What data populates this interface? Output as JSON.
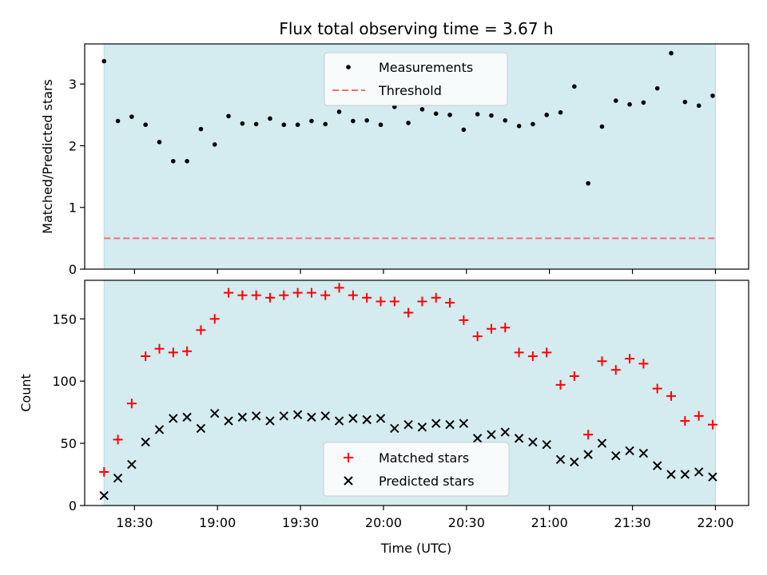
{
  "chart_data": [
    {
      "type": "scatter",
      "title": "Flux total observing time = 3.67 h",
      "ylabel": "Matched/Predicted stars",
      "xlabel": "",
      "ylim": [
        0,
        3.65
      ],
      "yticks": [
        0,
        1,
        2,
        3
      ],
      "x_time_range": [
        "18:12",
        "22:12"
      ],
      "shaded_interval": [
        "18:19",
        "22:00"
      ],
      "legend_position": "top-center",
      "series": [
        {
          "name": "Measurements",
          "color": "#000000",
          "marker": "dot",
          "x": [
            "18:19",
            "18:24",
            "18:29",
            "18:34",
            "18:39",
            "18:44",
            "18:49",
            "18:54",
            "18:59",
            "19:04",
            "19:09",
            "19:14",
            "19:19",
            "19:24",
            "19:29",
            "19:34",
            "19:39",
            "19:44",
            "19:49",
            "19:54",
            "19:59",
            "20:04",
            "20:09",
            "20:14",
            "20:19",
            "20:24",
            "20:29",
            "20:34",
            "20:39",
            "20:44",
            "20:49",
            "20:54",
            "20:59",
            "21:04",
            "21:09",
            "21:14",
            "21:19",
            "21:24",
            "21:29",
            "21:34",
            "21:39",
            "21:44",
            "21:49",
            "21:54",
            "21:59"
          ],
          "y": [
            3.37,
            2.4,
            2.47,
            2.34,
            2.06,
            1.75,
            1.75,
            2.27,
            2.02,
            2.48,
            2.36,
            2.35,
            2.44,
            2.34,
            2.34,
            2.4,
            2.35,
            2.55,
            2.4,
            2.41,
            2.34,
            2.63,
            2.37,
            2.59,
            2.52,
            2.5,
            2.26,
            2.51,
            2.49,
            2.41,
            2.32,
            2.35,
            2.5,
            2.54,
            2.96,
            1.39,
            2.31,
            2.73,
            2.67,
            2.7,
            2.93,
            3.5,
            2.71,
            2.65,
            2.81
          ]
        },
        {
          "name": "Threshold",
          "color": "#f07070",
          "style": "dashed",
          "x": [
            "18:19",
            "22:00"
          ],
          "y": [
            0.5,
            0.5
          ]
        }
      ]
    },
    {
      "type": "scatter",
      "title": "",
      "xlabel": "Time (UTC)",
      "ylabel": "Count",
      "ylim": [
        0,
        181
      ],
      "yticks": [
        0,
        50,
        100,
        150
      ],
      "xticks": [
        "18:30",
        "19:00",
        "19:30",
        "20:00",
        "20:30",
        "21:00",
        "21:30",
        "22:00"
      ],
      "x_time_range": [
        "18:12",
        "22:12"
      ],
      "shaded_interval": [
        "18:19",
        "22:00"
      ],
      "legend_position": "bottom-center",
      "series": [
        {
          "name": "Matched stars",
          "color": "#ff0000",
          "marker": "plus",
          "x": [
            "18:19",
            "18:24",
            "18:29",
            "18:34",
            "18:39",
            "18:44",
            "18:49",
            "18:54",
            "18:59",
            "19:04",
            "19:09",
            "19:14",
            "19:19",
            "19:24",
            "19:29",
            "19:34",
            "19:39",
            "19:44",
            "19:49",
            "19:54",
            "19:59",
            "20:04",
            "20:09",
            "20:14",
            "20:19",
            "20:24",
            "20:29",
            "20:34",
            "20:39",
            "20:44",
            "20:49",
            "20:54",
            "20:59",
            "21:04",
            "21:09",
            "21:14",
            "21:19",
            "21:24",
            "21:29",
            "21:34",
            "21:39",
            "21:44",
            "21:49",
            "21:54",
            "21:59"
          ],
          "y": [
            27,
            53,
            82,
            120,
            126,
            123,
            124,
            141,
            150,
            171,
            169,
            169,
            167,
            169,
            171,
            171,
            169,
            175,
            169,
            167,
            164,
            164,
            155,
            164,
            167,
            163,
            149,
            136,
            142,
            143,
            123,
            120,
            123,
            97,
            104,
            57,
            116,
            109,
            118,
            114,
            94,
            88,
            68,
            72,
            65
          ]
        },
        {
          "name": "Predicted stars",
          "color": "#000000",
          "marker": "x",
          "x": [
            "18:19",
            "18:24",
            "18:29",
            "18:34",
            "18:39",
            "18:44",
            "18:49",
            "18:54",
            "18:59",
            "19:04",
            "19:09",
            "19:14",
            "19:19",
            "19:24",
            "19:29",
            "19:34",
            "19:39",
            "19:44",
            "19:49",
            "19:54",
            "19:59",
            "20:04",
            "20:09",
            "20:14",
            "20:19",
            "20:24",
            "20:29",
            "20:34",
            "20:39",
            "20:44",
            "20:49",
            "20:54",
            "20:59",
            "21:04",
            "21:09",
            "21:14",
            "21:19",
            "21:24",
            "21:29",
            "21:34",
            "21:39",
            "21:44",
            "21:49",
            "21:54",
            "21:59"
          ],
          "y": [
            8,
            22,
            33,
            51,
            61,
            70,
            71,
            62,
            74,
            68,
            71,
            72,
            68,
            72,
            73,
            71,
            72,
            68,
            70,
            69,
            70,
            62,
            65,
            63,
            66,
            65,
            66,
            54,
            57,
            59,
            54,
            51,
            49,
            37,
            35,
            41,
            50,
            40,
            44,
            42,
            32,
            25,
            25,
            27,
            23
          ]
        }
      ]
    }
  ],
  "colors": {
    "shade": "#d4ebf0",
    "shade_edge": "#b8dce6",
    "legend_bg": "#ffffff"
  }
}
